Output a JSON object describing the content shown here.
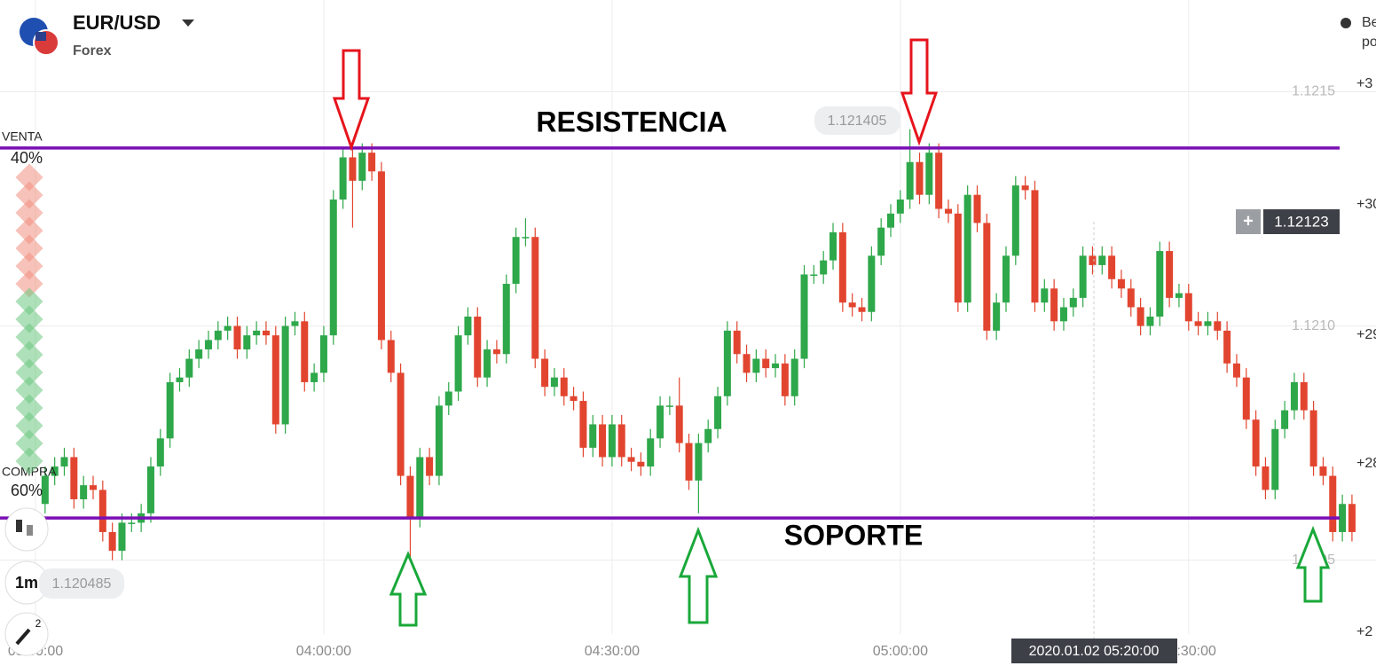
{
  "header": {
    "symbol": "EUR/USD",
    "market": "Forex",
    "help_text": [
      "Be",
      "po"
    ]
  },
  "sentiment": {
    "sell_label": "VENTA",
    "sell_pct": "40%",
    "buy_label": "COMPRA",
    "buy_pct": "60%"
  },
  "tools": {
    "timeframe": "1m",
    "drawings_badge": "2"
  },
  "price_labels": {
    "high": "1.121405",
    "low": "1.120485",
    "current_plus": "+",
    "current": "1.12123",
    "crosshair_time": "2020.01.02 05:20:00"
  },
  "right_scale": [
    "+3",
    "+30",
    "+29",
    "+28",
    "+2"
  ],
  "chart_data": {
    "type": "candlestick",
    "colors": {
      "up": "#2ea84a",
      "down": "#e2452f",
      "level": "#7a0fb5"
    },
    "grid": true,
    "xlim": [
      "03:30:00",
      "05:49:30"
    ],
    "xticks": [
      "03:30:00",
      "04:00:00",
      "04:30:00",
      "05:00:00",
      "05:30:00"
    ],
    "ylim": [
      1.120274,
      1.121696
    ],
    "yticks": [
      1.1205,
      {
        "value": 1.121,
        "label": "1.1210"
      },
      1.1215
    ],
    "levels": [
      {
        "label": "RESISTENCIA",
        "value": 1.12138
      },
      {
        "label": "SOPORTE",
        "value": 1.12059
      }
    ],
    "x": [
      "03:31:00",
      "03:32:00",
      "03:33:00",
      "03:34:00",
      "03:35:00",
      "03:36:00",
      "03:37:00",
      "03:38:00",
      "03:39:00",
      "03:40:00",
      "03:41:00",
      "03:42:00",
      "03:43:00",
      "03:44:00",
      "03:45:00",
      "03:46:00",
      "03:47:00",
      "03:48:00",
      "03:49:00",
      "03:50:00",
      "03:51:00",
      "03:52:00",
      "03:53:00",
      "03:54:00",
      "03:55:00",
      "03:56:00",
      "03:57:00",
      "03:58:00",
      "03:59:00",
      "04:00:00",
      "04:01:00",
      "04:02:00",
      "04:03:00",
      "04:04:00",
      "04:05:00",
      "04:06:00",
      "04:07:00",
      "04:08:00",
      "04:09:00",
      "04:10:00",
      "04:11:00",
      "04:12:00",
      "04:13:00",
      "04:14:00",
      "04:15:00",
      "04:16:00",
      "04:17:00",
      "04:18:00",
      "04:19:00",
      "04:20:00",
      "04:21:00",
      "04:22:00",
      "04:23:00",
      "04:24:00",
      "04:25:00",
      "04:26:00",
      "04:27:00",
      "04:28:00",
      "04:29:00",
      "04:30:00",
      "04:31:00",
      "04:32:00",
      "04:33:00",
      "04:34:00",
      "04:35:00",
      "04:36:00",
      "04:37:00",
      "04:38:00",
      "04:39:00",
      "04:40:00",
      "04:41:00",
      "04:42:00",
      "04:43:00",
      "04:44:00",
      "04:45:00",
      "04:46:00",
      "04:47:00",
      "04:48:00",
      "04:49:00",
      "04:50:00",
      "04:51:00",
      "04:52:00",
      "04:53:00",
      "04:54:00",
      "04:55:00",
      "04:56:00",
      "04:57:00",
      "04:58:00",
      "04:59:00",
      "05:00:00",
      "05:01:00",
      "05:02:00",
      "05:03:00",
      "05:04:00",
      "05:05:00",
      "05:06:00",
      "05:07:00",
      "05:08:00",
      "05:09:00",
      "05:10:00",
      "05:11:00",
      "05:12:00",
      "05:13:00",
      "05:14:00",
      "05:15:00",
      "05:16:00",
      "05:17:00",
      "05:18:00",
      "05:19:00",
      "05:20:00",
      "05:21:00",
      "05:22:00",
      "05:23:00",
      "05:24:00",
      "05:25:00",
      "05:26:00",
      "05:27:00",
      "05:28:00",
      "05:29:00",
      "05:30:00",
      "05:31:00",
      "05:32:00",
      "05:33:00",
      "05:34:00",
      "05:35:00",
      "05:36:00",
      "05:37:00",
      "05:38:00",
      "05:39:00",
      "05:40:00",
      "05:41:00",
      "05:42:00",
      "05:43:00",
      "05:44:00",
      "05:45:00",
      "05:46:00",
      "05:47:00"
    ],
    "open": [
      1.12062,
      1.12068,
      1.1207,
      1.12072,
      1.12063,
      1.12066,
      1.12065,
      1.12056,
      1.12052,
      1.12058,
      1.12058,
      1.1206,
      1.1207,
      1.12076,
      1.12088,
      1.12089,
      1.12093,
      1.12095,
      1.12097,
      1.12099,
      1.121,
      1.12095,
      1.12098,
      1.12099,
      1.12098,
      1.12079,
      1.121,
      1.12101,
      1.12088,
      1.1209,
      1.12098,
      1.12127,
      1.12136,
      1.12131,
      1.12137,
      1.12133,
      1.12097,
      1.1209,
      1.12068,
      1.12059,
      1.12072,
      1.12068,
      1.12083,
      1.12086,
      1.12098,
      1.12102,
      1.12089,
      1.12095,
      1.12094,
      1.12109,
      1.12119,
      1.12119,
      1.12093,
      1.12087,
      1.12089,
      1.12085,
      1.12084,
      1.12074,
      1.12079,
      1.12072,
      1.12079,
      1.12072,
      1.12071,
      1.1207,
      1.12076,
      1.12083,
      1.12083,
      1.12075,
      1.12067,
      1.12075,
      1.12078,
      1.12085,
      1.12099,
      1.12094,
      1.1209,
      1.12093,
      1.12091,
      1.12092,
      1.12085,
      1.12093,
      1.12111,
      1.12111,
      1.12114,
      1.1212,
      1.12105,
      1.12104,
      1.12103,
      1.12115,
      1.12121,
      1.12124,
      1.12127,
      1.12135,
      1.12128,
      1.12137,
      1.12125,
      1.12124,
      1.12105,
      1.12128,
      1.12122,
      1.12099,
      1.12105,
      1.12115,
      1.1213,
      1.12129,
      1.12105,
      1.12108,
      1.12101,
      1.12104,
      1.12106,
      1.12115,
      1.12113,
      1.12115,
      1.1211,
      1.12108,
      1.12104,
      1.121,
      1.12102,
      1.12116,
      1.12106,
      1.12107,
      1.12101,
      1.121,
      1.12101,
      1.12099,
      1.12092,
      1.12089,
      1.1208,
      1.1207,
      1.12065,
      1.12078,
      1.12082,
      1.12088,
      1.12082,
      1.1207,
      1.12068,
      1.12056,
      1.12062
    ],
    "high": [
      1.1207,
      1.12072,
      1.12074,
      1.12074,
      1.12068,
      1.12068,
      1.12067,
      1.12058,
      1.1206,
      1.1206,
      1.12062,
      1.12072,
      1.12078,
      1.1209,
      1.12091,
      1.12095,
      1.12097,
      1.12099,
      1.12101,
      1.12102,
      1.12102,
      1.121,
      1.12101,
      1.12101,
      1.121,
      1.12102,
      1.12103,
      1.12103,
      1.12092,
      1.121,
      1.12129,
      1.12138,
      1.12138,
      1.12139,
      1.12139,
      1.12135,
      1.12099,
      1.12092,
      1.1207,
      1.12074,
      1.12074,
      1.12085,
      1.12088,
      1.121,
      1.12104,
      1.12104,
      1.12097,
      1.12097,
      1.12111,
      1.12121,
      1.12123,
      1.12121,
      1.12095,
      1.12091,
      1.12091,
      1.12087,
      1.12086,
      1.12081,
      1.12081,
      1.12081,
      1.12081,
      1.12074,
      1.12073,
      1.12078,
      1.12085,
      1.12085,
      1.12089,
      1.12077,
      1.12077,
      1.1208,
      1.12087,
      1.12101,
      1.12101,
      1.12096,
      1.12095,
      1.12095,
      1.12094,
      1.12094,
      1.12095,
      1.12113,
      1.12113,
      1.12116,
      1.12122,
      1.12122,
      1.12107,
      1.12106,
      1.12117,
      1.12123,
      1.12126,
      1.12129,
      1.12142,
      1.12137,
      1.12139,
      1.12139,
      1.12127,
      1.12126,
      1.1213,
      1.1213,
      1.12124,
      1.12107,
      1.12117,
      1.12132,
      1.12132,
      1.12131,
      1.1211,
      1.1211,
      1.12106,
      1.12108,
      1.12117,
      1.12117,
      1.12117,
      1.12117,
      1.12112,
      1.1211,
      1.12106,
      1.12104,
      1.12118,
      1.12118,
      1.12109,
      1.12109,
      1.12103,
      1.12103,
      1.12103,
      1.12101,
      1.12094,
      1.12091,
      1.12082,
      1.12072,
      1.1208,
      1.12084,
      1.1209,
      1.1209,
      1.12084,
      1.12072,
      1.1207,
      1.12064,
      1.12064
    ],
    "low": [
      1.1206,
      1.12066,
      1.12068,
      1.12061,
      1.12061,
      1.12063,
      1.12054,
      1.1205,
      1.1205,
      1.12056,
      1.12056,
      1.12058,
      1.12068,
      1.12074,
      1.12086,
      1.12087,
      1.12091,
      1.12093,
      1.12095,
      1.12097,
      1.12093,
      1.12093,
      1.12096,
      1.12096,
      1.12077,
      1.12077,
      1.12098,
      1.12086,
      1.12086,
      1.12088,
      1.12096,
      1.12125,
      1.12121,
      1.12129,
      1.12131,
      1.12095,
      1.12088,
      1.12066,
      1.1205,
      1.12057,
      1.12066,
      1.12066,
      1.12081,
      1.12084,
      1.12096,
      1.12087,
      1.12087,
      1.12092,
      1.12092,
      1.12107,
      1.12117,
      1.12091,
      1.12085,
      1.12085,
      1.12083,
      1.12082,
      1.12072,
      1.12072,
      1.1207,
      1.1207,
      1.1207,
      1.12069,
      1.12068,
      1.12068,
      1.12074,
      1.12081,
      1.12073,
      1.12065,
      1.1206,
      1.12073,
      1.12076,
      1.12083,
      1.12092,
      1.12088,
      1.12088,
      1.12089,
      1.12089,
      1.12083,
      1.12083,
      1.12091,
      1.12109,
      1.12109,
      1.12112,
      1.12103,
      1.12102,
      1.12101,
      1.12101,
      1.12113,
      1.12119,
      1.12122,
      1.12125,
      1.12126,
      1.12126,
      1.12123,
      1.12122,
      1.12103,
      1.12103,
      1.1212,
      1.12097,
      1.12097,
      1.12103,
      1.12113,
      1.12127,
      1.12103,
      1.12103,
      1.12099,
      1.12099,
      1.12102,
      1.12104,
      1.12111,
      1.12111,
      1.12108,
      1.12106,
      1.12102,
      1.12098,
      1.12098,
      1.121,
      1.12104,
      1.12104,
      1.12099,
      1.12098,
      1.12098,
      1.12097,
      1.1209,
      1.12087,
      1.12078,
      1.12068,
      1.12063,
      1.12063,
      1.12076,
      1.1208,
      1.1208,
      1.12068,
      1.12066,
      1.12054,
      1.12054,
      1.12054
    ],
    "close": [
      1.12068,
      1.1207,
      1.12072,
      1.12063,
      1.12066,
      1.12065,
      1.12056,
      1.12052,
      1.12058,
      1.12058,
      1.1206,
      1.1207,
      1.12076,
      1.12088,
      1.12089,
      1.12093,
      1.12095,
      1.12097,
      1.12099,
      1.121,
      1.12095,
      1.12098,
      1.12099,
      1.12098,
      1.12079,
      1.121,
      1.12101,
      1.12088,
      1.1209,
      1.12098,
      1.12127,
      1.12136,
      1.12131,
      1.12137,
      1.12133,
      1.12097,
      1.1209,
      1.12068,
      1.12059,
      1.12072,
      1.12068,
      1.12083,
      1.12086,
      1.12098,
      1.12102,
      1.12089,
      1.12095,
      1.12094,
      1.12109,
      1.12119,
      1.12119,
      1.12093,
      1.12087,
      1.12089,
      1.12085,
      1.12084,
      1.12074,
      1.12079,
      1.12072,
      1.12079,
      1.12072,
      1.12071,
      1.1207,
      1.12076,
      1.12083,
      1.12083,
      1.12075,
      1.12067,
      1.12075,
      1.12078,
      1.12085,
      1.12099,
      1.12094,
      1.1209,
      1.12093,
      1.12091,
      1.12092,
      1.12085,
      1.12093,
      1.12111,
      1.12111,
      1.12114,
      1.1212,
      1.12105,
      1.12104,
      1.12103,
      1.12115,
      1.12121,
      1.12124,
      1.12127,
      1.12135,
      1.12128,
      1.12137,
      1.12125,
      1.12124,
      1.12105,
      1.12128,
      1.12122,
      1.12099,
      1.12105,
      1.12115,
      1.1213,
      1.12129,
      1.12105,
      1.12108,
      1.12101,
      1.12104,
      1.12106,
      1.12115,
      1.12113,
      1.12115,
      1.1211,
      1.12108,
      1.12104,
      1.121,
      1.12102,
      1.12116,
      1.12106,
      1.12107,
      1.12101,
      1.121,
      1.12101,
      1.12099,
      1.12092,
      1.12089,
      1.1208,
      1.1207,
      1.12065,
      1.12078,
      1.12082,
      1.12088,
      1.12082,
      1.1207,
      1.12068,
      1.12056,
      1.12062,
      1.12056
    ]
  }
}
